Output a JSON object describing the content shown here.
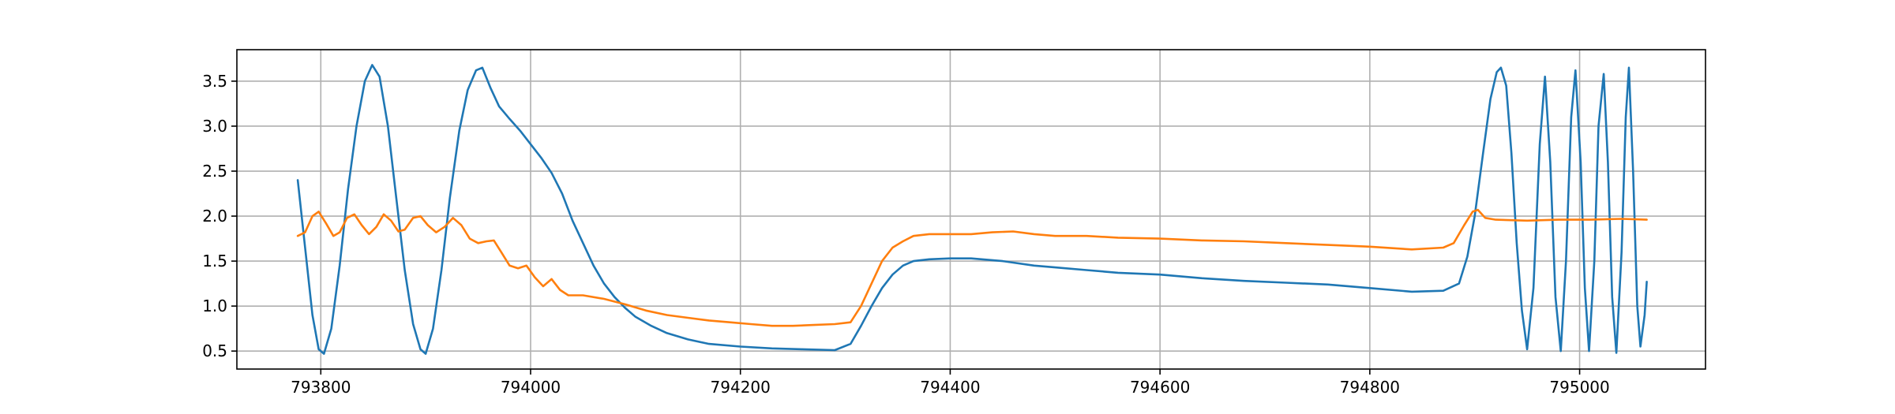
{
  "chart_data": {
    "type": "line",
    "title": "",
    "xlabel": "",
    "ylabel": "",
    "xlim": [
      793720,
      795120
    ],
    "ylim": [
      0.3,
      3.85
    ],
    "grid": true,
    "legend": "none",
    "x_ticks": [
      793800,
      794000,
      794200,
      794400,
      794600,
      794800,
      795000
    ],
    "x_tick_labels": [
      "793800",
      "794000",
      "794200",
      "794400",
      "794600",
      "794800",
      "795000"
    ],
    "y_ticks": [
      0.5,
      1.0,
      1.5,
      2.0,
      2.5,
      3.0,
      3.5
    ],
    "y_tick_labels": [
      "0.5",
      "1.0",
      "1.5",
      "2.0",
      "2.5",
      "3.0",
      "3.5"
    ],
    "series": [
      {
        "color": "#1f77b4",
        "points": [
          [
            793778,
            2.4
          ],
          [
            793785,
            1.65
          ],
          [
            793792,
            0.9
          ],
          [
            793798,
            0.52
          ],
          [
            793803,
            0.47
          ],
          [
            793810,
            0.75
          ],
          [
            793818,
            1.45
          ],
          [
            793826,
            2.3
          ],
          [
            793834,
            3.0
          ],
          [
            793842,
            3.5
          ],
          [
            793849,
            3.68
          ],
          [
            793856,
            3.55
          ],
          [
            793864,
            3.0
          ],
          [
            793872,
            2.2
          ],
          [
            793880,
            1.4
          ],
          [
            793888,
            0.8
          ],
          [
            793895,
            0.52
          ],
          [
            793900,
            0.47
          ],
          [
            793907,
            0.75
          ],
          [
            793915,
            1.4
          ],
          [
            793923,
            2.2
          ],
          [
            793932,
            2.95
          ],
          [
            793940,
            3.4
          ],
          [
            793948,
            3.62
          ],
          [
            793954,
            3.65
          ],
          [
            793962,
            3.42
          ],
          [
            793970,
            3.22
          ],
          [
            793980,
            3.08
          ],
          [
            793990,
            2.95
          ],
          [
            794000,
            2.8
          ],
          [
            794010,
            2.65
          ],
          [
            794020,
            2.48
          ],
          [
            794030,
            2.25
          ],
          [
            794040,
            1.95
          ],
          [
            794050,
            1.7
          ],
          [
            794060,
            1.45
          ],
          [
            794070,
            1.25
          ],
          [
            794080,
            1.1
          ],
          [
            794090,
            0.98
          ],
          [
            794100,
            0.88
          ],
          [
            794115,
            0.78
          ],
          [
            794130,
            0.7
          ],
          [
            794150,
            0.63
          ],
          [
            794170,
            0.58
          ],
          [
            794200,
            0.55
          ],
          [
            794230,
            0.53
          ],
          [
            794260,
            0.52
          ],
          [
            794290,
            0.51
          ],
          [
            794305,
            0.58
          ],
          [
            794315,
            0.78
          ],
          [
            794325,
            1.0
          ],
          [
            794335,
            1.2
          ],
          [
            794345,
            1.35
          ],
          [
            794355,
            1.45
          ],
          [
            794365,
            1.5
          ],
          [
            794380,
            1.52
          ],
          [
            794400,
            1.53
          ],
          [
            794420,
            1.53
          ],
          [
            794450,
            1.5
          ],
          [
            794480,
            1.45
          ],
          [
            794500,
            1.43
          ],
          [
            794530,
            1.4
          ],
          [
            794560,
            1.37
          ],
          [
            794600,
            1.35
          ],
          [
            794640,
            1.31
          ],
          [
            794680,
            1.28
          ],
          [
            794720,
            1.26
          ],
          [
            794760,
            1.24
          ],
          [
            794800,
            1.2
          ],
          [
            794840,
            1.16
          ],
          [
            794870,
            1.17
          ],
          [
            794885,
            1.25
          ],
          [
            794893,
            1.55
          ],
          [
            794900,
            2.0
          ],
          [
            794908,
            2.7
          ],
          [
            794915,
            3.3
          ],
          [
            794921,
            3.6
          ],
          [
            794925,
            3.65
          ],
          [
            794930,
            3.45
          ],
          [
            794935,
            2.7
          ],
          [
            794940,
            1.7
          ],
          [
            794945,
            0.95
          ],
          [
            794950,
            0.52
          ],
          [
            794956,
            1.2
          ],
          [
            794962,
            2.8
          ],
          [
            794967,
            3.55
          ],
          [
            794972,
            2.6
          ],
          [
            794977,
            1.1
          ],
          [
            794982,
            0.5
          ],
          [
            794987,
            1.5
          ],
          [
            794992,
            3.1
          ],
          [
            794996,
            3.62
          ],
          [
            795001,
            2.6
          ],
          [
            795005,
            1.2
          ],
          [
            795009,
            0.5
          ],
          [
            795014,
            1.5
          ],
          [
            795018,
            3.0
          ],
          [
            795023,
            3.58
          ],
          [
            795027,
            2.6
          ],
          [
            795031,
            1.1
          ],
          [
            795035,
            0.48
          ],
          [
            795040,
            1.6
          ],
          [
            795044,
            3.1
          ],
          [
            795047,
            3.65
          ],
          [
            795051,
            2.5
          ],
          [
            795055,
            1.0
          ],
          [
            795058,
            0.55
          ],
          [
            795062,
            0.9
          ],
          [
            795064,
            1.27
          ]
        ]
      },
      {
        "color": "#ff7f0e",
        "points": [
          [
            793778,
            1.78
          ],
          [
            793785,
            1.82
          ],
          [
            793792,
            2.0
          ],
          [
            793798,
            2.05
          ],
          [
            793805,
            1.92
          ],
          [
            793812,
            1.78
          ],
          [
            793818,
            1.82
          ],
          [
            793825,
            1.98
          ],
          [
            793832,
            2.02
          ],
          [
            793839,
            1.9
          ],
          [
            793846,
            1.8
          ],
          [
            793853,
            1.88
          ],
          [
            793860,
            2.02
          ],
          [
            793867,
            1.95
          ],
          [
            793874,
            1.83
          ],
          [
            793880,
            1.85
          ],
          [
            793888,
            1.98
          ],
          [
            793895,
            2.0
          ],
          [
            793902,
            1.9
          ],
          [
            793910,
            1.82
          ],
          [
            793918,
            1.88
          ],
          [
            793926,
            1.98
          ],
          [
            793934,
            1.9
          ],
          [
            793942,
            1.75
          ],
          [
            793950,
            1.7
          ],
          [
            793958,
            1.72
          ],
          [
            793965,
            1.73
          ],
          [
            793972,
            1.6
          ],
          [
            793980,
            1.45
          ],
          [
            793988,
            1.42
          ],
          [
            793996,
            1.45
          ],
          [
            794004,
            1.32
          ],
          [
            794012,
            1.22
          ],
          [
            794020,
            1.3
          ],
          [
            794028,
            1.18
          ],
          [
            794036,
            1.12
          ],
          [
            794050,
            1.12
          ],
          [
            794070,
            1.08
          ],
          [
            794090,
            1.02
          ],
          [
            794110,
            0.95
          ],
          [
            794130,
            0.9
          ],
          [
            794150,
            0.87
          ],
          [
            794170,
            0.84
          ],
          [
            794190,
            0.82
          ],
          [
            794210,
            0.8
          ],
          [
            794230,
            0.78
          ],
          [
            794250,
            0.78
          ],
          [
            794270,
            0.79
          ],
          [
            794290,
            0.8
          ],
          [
            794305,
            0.82
          ],
          [
            794315,
            1.0
          ],
          [
            794325,
            1.25
          ],
          [
            794335,
            1.5
          ],
          [
            794345,
            1.65
          ],
          [
            794355,
            1.72
          ],
          [
            794365,
            1.78
          ],
          [
            794380,
            1.8
          ],
          [
            794400,
            1.8
          ],
          [
            794420,
            1.8
          ],
          [
            794440,
            1.82
          ],
          [
            794460,
            1.83
          ],
          [
            794480,
            1.8
          ],
          [
            794500,
            1.78
          ],
          [
            794530,
            1.78
          ],
          [
            794560,
            1.76
          ],
          [
            794600,
            1.75
          ],
          [
            794640,
            1.73
          ],
          [
            794680,
            1.72
          ],
          [
            794720,
            1.7
          ],
          [
            794760,
            1.68
          ],
          [
            794800,
            1.66
          ],
          [
            794840,
            1.63
          ],
          [
            794870,
            1.65
          ],
          [
            794880,
            1.7
          ],
          [
            794890,
            1.9
          ],
          [
            794898,
            2.05
          ],
          [
            794903,
            2.07
          ],
          [
            794910,
            1.98
          ],
          [
            794920,
            1.96
          ],
          [
            794950,
            1.95
          ],
          [
            794980,
            1.96
          ],
          [
            795010,
            1.96
          ],
          [
            795040,
            1.97
          ],
          [
            795064,
            1.96
          ]
        ]
      }
    ]
  }
}
